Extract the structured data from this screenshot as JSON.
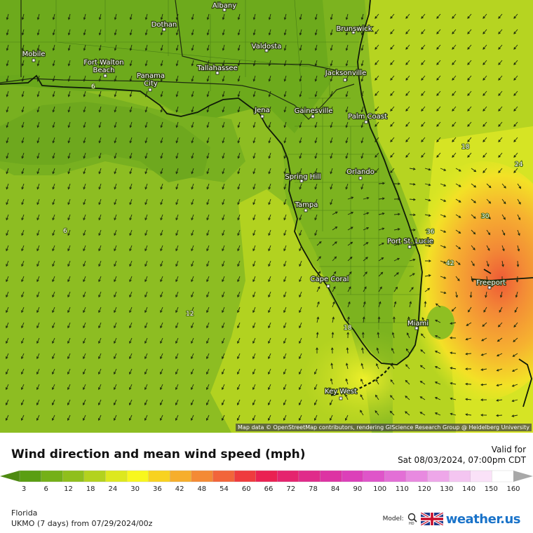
{
  "map": {
    "attribution": "Map data © OpenStreetMap contributors, rendering GIScience Research Group @ Heidelberg University",
    "cities": [
      {
        "name": "Albany"
      },
      {
        "name": "Dothan"
      },
      {
        "name": "Brunswick"
      },
      {
        "name": "Valdosta"
      },
      {
        "name": "Mobile"
      },
      {
        "name": "Fort Walton Beach"
      },
      {
        "name": "Panama City"
      },
      {
        "name": "Tallahassee"
      },
      {
        "name": "Jacksonville"
      },
      {
        "name": "Jena"
      },
      {
        "name": "Gainesville"
      },
      {
        "name": "Palm Coast"
      },
      {
        "name": "Spring Hill"
      },
      {
        "name": "Orlando"
      },
      {
        "name": "Tampa"
      },
      {
        "name": "Port St. Lucie"
      },
      {
        "name": "Cape Coral"
      },
      {
        "name": "Freeport"
      },
      {
        "name": "Miami"
      },
      {
        "name": "Key West"
      }
    ],
    "contour_labels": [
      "6",
      "6",
      "12",
      "18",
      "18",
      "24",
      "30",
      "36",
      "42"
    ]
  },
  "header": {
    "title": "Wind direction and mean wind speed (mph)",
    "valid_label": "Valid for",
    "valid_time": "Sat 08/03/2024, 07:00pm CDT"
  },
  "scale": {
    "ticks": [
      "3",
      "6",
      "12",
      "18",
      "24",
      "30",
      "36",
      "42",
      "48",
      "54",
      "60",
      "66",
      "72",
      "78",
      "84",
      "90",
      "100",
      "110",
      "120",
      "130",
      "140",
      "150",
      "160"
    ],
    "colors": [
      "#5a9e12",
      "#74b018",
      "#8fbf1c",
      "#b3d21e",
      "#dde81e",
      "#f8f71e",
      "#f8d220",
      "#f6ae2c",
      "#f48a35",
      "#f2653a",
      "#ef3b3e",
      "#ea2152",
      "#e5246e",
      "#e02b8a",
      "#dd33a3",
      "#dc40b9",
      "#df55c9",
      "#e36fd6",
      "#e88ae0",
      "#eea7e9",
      "#f4c5f1",
      "#fae2f8",
      "#ffffff"
    ],
    "left_arrow_color": "#4e8a12",
    "right_arrow_color": "#a8a8a8"
  },
  "footer": {
    "region": "Florida",
    "model_run": "UKMO (7 days) from 07/29/2024/00z",
    "model_label": "Model:",
    "brand": "weather.us"
  }
}
